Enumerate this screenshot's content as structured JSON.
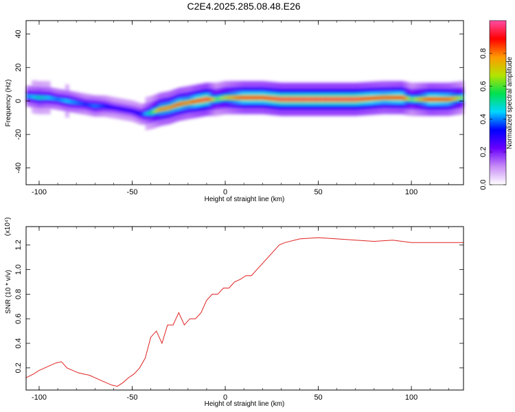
{
  "chart_data": [
    {
      "type": "heatmap",
      "title": "C2E4.2025.285.08.48.E26",
      "xlabel": "Height of straight line (km)",
      "ylabel": "Frequency (Hz)",
      "xlim": [
        -107,
        128
      ],
      "ylim": [
        -50,
        48
      ],
      "xticks": [
        "-100",
        "-50",
        "0",
        "50",
        "100"
      ],
      "yticks": [
        "40",
        "20",
        "0",
        "-20",
        "-40"
      ],
      "colorbar": {
        "label": "Normalized spectral amplitude",
        "range": [
          0,
          1
        ],
        "ticks": [
          "0.0",
          "0.2",
          "0.4",
          "0.6",
          "0.8"
        ],
        "colors": [
          "#ffffff",
          "#c78cf5",
          "#6a00ff",
          "#0000ff",
          "#00d7ff",
          "#00e050",
          "#b4e400",
          "#ff9900",
          "#ff0000",
          "#ff4da6"
        ]
      },
      "ridge": {
        "x": [
          -107,
          -100,
          -95,
          -90,
          -85,
          -80,
          -75,
          -70,
          -65,
          -60,
          -55,
          -50,
          -45,
          -40,
          -35,
          -30,
          -25,
          -20,
          -15,
          -10,
          -5,
          0,
          10,
          20,
          30,
          50,
          70,
          85,
          95,
          100,
          110,
          120,
          128
        ],
        "y": [
          3,
          2,
          2,
          1,
          0,
          -1,
          -2,
          -3,
          -3,
          -4,
          -5,
          -6,
          -8,
          -7,
          -5,
          -4,
          -2,
          -1,
          0,
          1,
          1,
          2,
          2,
          2,
          1,
          1,
          1,
          2,
          2,
          1,
          1,
          1,
          2
        ],
        "amp": [
          0.4,
          0.5,
          0.45,
          0.4,
          0.45,
          0.4,
          0.35,
          0.4,
          0.35,
          0.3,
          0.3,
          0.3,
          0.35,
          0.55,
          0.8,
          0.8,
          0.85,
          0.8,
          0.9,
          0.95,
          0.6,
          0.7,
          0.9,
          0.9,
          0.95,
          0.95,
          0.95,
          0.85,
          0.9,
          0.6,
          0.9,
          0.85,
          0.6
        ]
      }
    },
    {
      "type": "line",
      "xlabel": "Height of straight line (km)",
      "ylabel": "SNR (10 * v/v)",
      "multiplier": "(x10⁴)",
      "xlim": [
        -107,
        128
      ],
      "ylim": [
        0.02,
        1.35
      ],
      "xticks": [
        "-100",
        "-50",
        "0",
        "50",
        "100"
      ],
      "yticks": [
        "1.2",
        "1.0",
        "0.8",
        "0.6",
        "0.4",
        "0.2"
      ],
      "color": "#e02020",
      "series": [
        {
          "x": [
            -107,
            -103,
            -100,
            -97,
            -94,
            -91,
            -88,
            -85,
            -82,
            -79,
            -76,
            -73,
            -70,
            -67,
            -64,
            -61,
            -58,
            -55,
            -52,
            -49,
            -46,
            -43,
            -40,
            -37,
            -34,
            -31,
            -28,
            -25,
            -22,
            -19,
            -16,
            -13,
            -10,
            -7,
            -4,
            -1,
            2,
            5,
            8,
            11,
            14,
            17,
            20,
            23,
            26,
            29,
            32,
            40,
            50,
            60,
            70,
            80,
            90,
            100,
            110,
            120,
            128
          ],
          "y": [
            0.12,
            0.15,
            0.18,
            0.2,
            0.22,
            0.24,
            0.25,
            0.2,
            0.18,
            0.16,
            0.15,
            0.14,
            0.12,
            0.1,
            0.08,
            0.06,
            0.05,
            0.08,
            0.12,
            0.15,
            0.2,
            0.28,
            0.45,
            0.5,
            0.4,
            0.55,
            0.55,
            0.65,
            0.55,
            0.6,
            0.6,
            0.65,
            0.75,
            0.8,
            0.8,
            0.85,
            0.85,
            0.9,
            0.92,
            0.95,
            0.95,
            1.0,
            1.05,
            1.1,
            1.15,
            1.2,
            1.22,
            1.25,
            1.26,
            1.25,
            1.24,
            1.23,
            1.24,
            1.22,
            1.22,
            1.22,
            1.22
          ]
        }
      ]
    }
  ]
}
